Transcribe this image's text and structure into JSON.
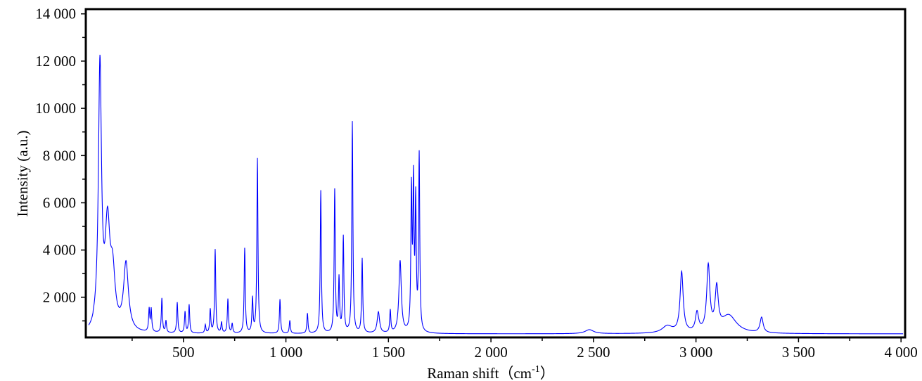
{
  "chart_data": {
    "type": "line",
    "title": "",
    "xlabel": "Raman shift（cm",
    "xlabel_sup": "-1",
    "xlabel_end": "）",
    "ylabel": "Intensity (a.u.)",
    "xlim": [
      24,
      4020
    ],
    "ylim": [
      300,
      14200
    ],
    "grid": false,
    "legend": "none",
    "line_color": "#0000FF",
    "x_ticks": [
      {
        "value": 500,
        "label": "500"
      },
      {
        "value": 1000,
        "label": "1 000"
      },
      {
        "value": 1500,
        "label": "1 500"
      },
      {
        "value": 2000,
        "label": "2 000"
      },
      {
        "value": 2500,
        "label": "2 500"
      },
      {
        "value": 3000,
        "label": "3 000"
      },
      {
        "value": 3500,
        "label": "3 500"
      },
      {
        "value": 4000,
        "label": "4 000"
      }
    ],
    "y_ticks": [
      {
        "value": 2000,
        "label": "2 000"
      },
      {
        "value": 4000,
        "label": "4 000"
      },
      {
        "value": 6000,
        "label": "6 000"
      },
      {
        "value": 8000,
        "label": "8 000"
      },
      {
        "value": 10000,
        "label": "10 000"
      },
      {
        "value": 12000,
        "label": "12 000"
      },
      {
        "value": 14000,
        "label": "14 000"
      }
    ],
    "baseline": 450,
    "peaks": [
      {
        "x": 93,
        "y": 11600
      },
      {
        "x": 130,
        "y": 4650
      },
      {
        "x": 155,
        "y": 2600
      },
      {
        "x": 220,
        "y": 3300
      },
      {
        "x": 333,
        "y": 1400
      },
      {
        "x": 343,
        "y": 1400
      },
      {
        "x": 395,
        "y": 1900
      },
      {
        "x": 415,
        "y": 950
      },
      {
        "x": 470,
        "y": 1750
      },
      {
        "x": 508,
        "y": 1350
      },
      {
        "x": 528,
        "y": 1650
      },
      {
        "x": 607,
        "y": 800
      },
      {
        "x": 631,
        "y": 1450
      },
      {
        "x": 655,
        "y": 4000
      },
      {
        "x": 686,
        "y": 900
      },
      {
        "x": 717,
        "y": 1900
      },
      {
        "x": 738,
        "y": 850
      },
      {
        "x": 799,
        "y": 4050
      },
      {
        "x": 837,
        "y": 1900
      },
      {
        "x": 861,
        "y": 7850
      },
      {
        "x": 971,
        "y": 1900
      },
      {
        "x": 1019,
        "y": 1000
      },
      {
        "x": 1105,
        "y": 1300
      },
      {
        "x": 1170,
        "y": 6500
      },
      {
        "x": 1238,
        "y": 6500
      },
      {
        "x": 1259,
        "y": 2700
      },
      {
        "x": 1280,
        "y": 4500
      },
      {
        "x": 1324,
        "y": 9400
      },
      {
        "x": 1372,
        "y": 3600
      },
      {
        "x": 1451,
        "y": 1350
      },
      {
        "x": 1509,
        "y": 1400
      },
      {
        "x": 1557,
        "y": 3500
      },
      {
        "x": 1612,
        "y": 6300
      },
      {
        "x": 1622,
        "y": 6500
      },
      {
        "x": 1633,
        "y": 5800
      },
      {
        "x": 1650,
        "y": 7900
      },
      {
        "x": 2480,
        "y": 620
      },
      {
        "x": 2860,
        "y": 750
      },
      {
        "x": 2930,
        "y": 3000
      },
      {
        "x": 3005,
        "y": 1250
      },
      {
        "x": 3060,
        "y": 3200
      },
      {
        "x": 3101,
        "y": 2200
      },
      {
        "x": 3160,
        "y": 1200
      },
      {
        "x": 3320,
        "y": 1100
      }
    ]
  }
}
